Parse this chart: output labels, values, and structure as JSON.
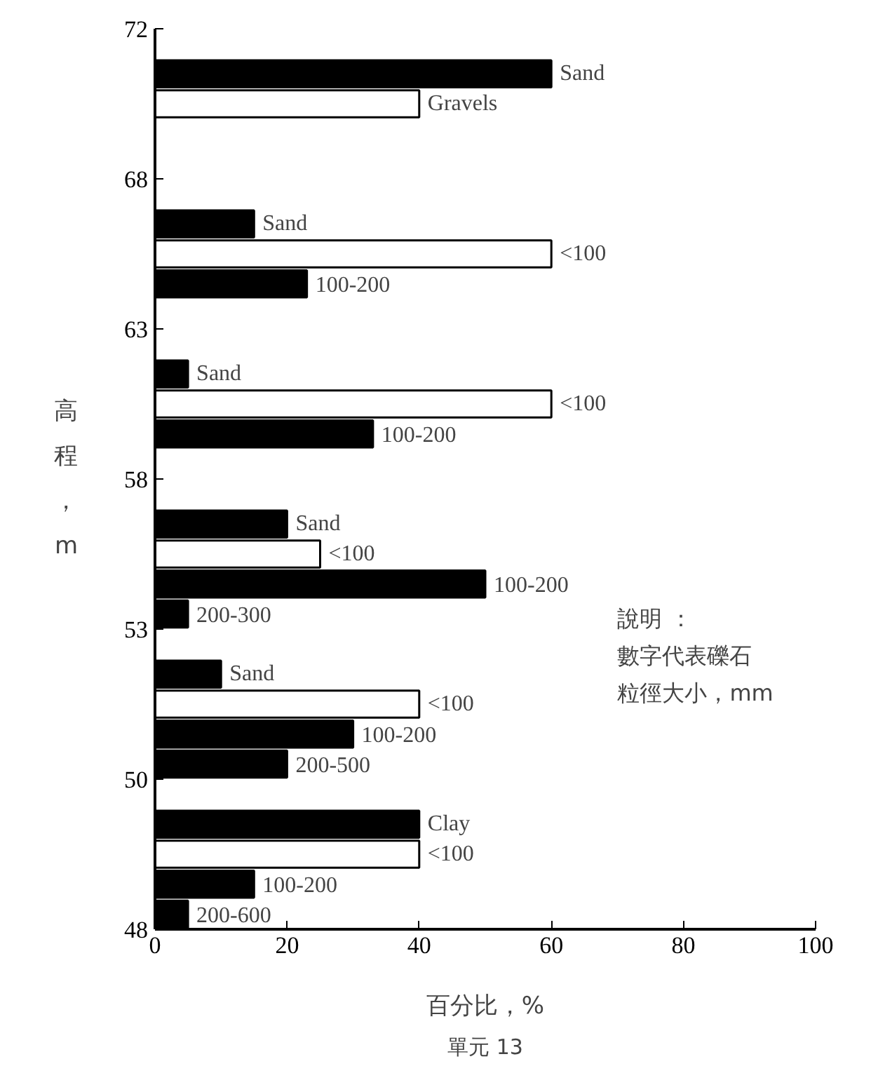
{
  "chart_data": {
    "type": "bar",
    "orientation": "horizontal",
    "xlabel": "百分比，%",
    "ylabel": "高程，m",
    "categories": [
      null,
      "Sand",
      "Gravels",
      null,
      null,
      null,
      "Sand",
      "<100",
      "100-200",
      null,
      null,
      "Sand",
      "<100",
      "100-200",
      null,
      null,
      "Sand",
      "<100",
      "100-200",
      "200-300",
      null,
      "Sand",
      "<100",
      "100-200",
      "200-500",
      null,
      "Clay",
      "<100",
      "100-200",
      "200-600"
    ],
    "values": [
      null,
      60,
      40,
      null,
      null,
      null,
      15,
      60,
      23,
      null,
      null,
      5,
      60,
      33,
      null,
      null,
      20,
      25,
      50,
      5,
      null,
      10,
      40,
      30,
      20,
      null,
      40,
      40,
      15,
      5
    ],
    "colors": [
      "#000000",
      "#000000",
      "#ffffff",
      "#000000",
      "#000000",
      "#000000",
      "#000000",
      "#ffffff",
      "#000000",
      "#000000",
      "#000000",
      "#000000",
      "#ffffff",
      "#000000",
      "#000000",
      "#000000",
      "#000000",
      "#ffffff",
      "#000000",
      "#000000",
      "#000000",
      "#000000",
      "#ffffff",
      "#000000",
      "#000000",
      "#000000",
      "#000000",
      "#ffffff",
      "#000000",
      "#000000"
    ],
    "xlim": [
      0,
      100
    ],
    "xticks": [
      0,
      20,
      40,
      60,
      80,
      100
    ],
    "grid": false,
    "annotations": [
      "72",
      "68",
      "63",
      "58",
      "53",
      "50",
      "48",
      "說明 ：",
      "數字代表礫石",
      "粒徑大小，mm",
      "單元 13"
    ]
  }
}
